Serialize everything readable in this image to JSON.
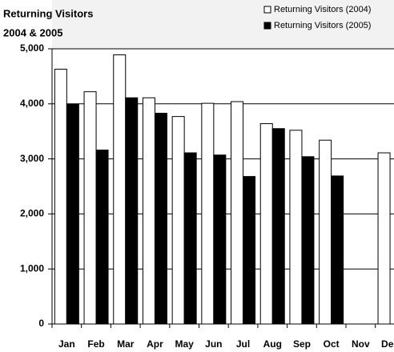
{
  "chart_data": {
    "type": "bar",
    "title": "Returning Visitors",
    "subtitle": "2004 & 2005",
    "categories": [
      "Jan",
      "Feb",
      "Mar",
      "Apr",
      "May",
      "Jun",
      "Jul",
      "Aug",
      "Sep",
      "Oct",
      "Nov",
      "Dec"
    ],
    "series": [
      {
        "name": "Returning Visitors (2004)",
        "color": "#ffffff",
        "values": [
          4630,
          4220,
          4890,
          4110,
          3770,
          4010,
          4040,
          3640,
          3520,
          3340,
          null,
          3110
        ]
      },
      {
        "name": "Returning Visitors (2005)",
        "color": "#000000",
        "values": [
          3990,
          3160,
          4110,
          3830,
          3110,
          3070,
          2680,
          3550,
          3040,
          2690,
          null,
          null
        ]
      }
    ],
    "ylim": [
      0,
      5000
    ],
    "yticks": [
      0,
      {
        "value": 1000,
        "label": "1,000"
      },
      {
        "value": 2000,
        "label": "2,000"
      },
      {
        "value": 3000,
        "label": "3,000"
      },
      {
        "value": 4000,
        "label": "4,000"
      },
      {
        "value": 5000,
        "label": "5,000"
      }
    ],
    "grid": true
  }
}
